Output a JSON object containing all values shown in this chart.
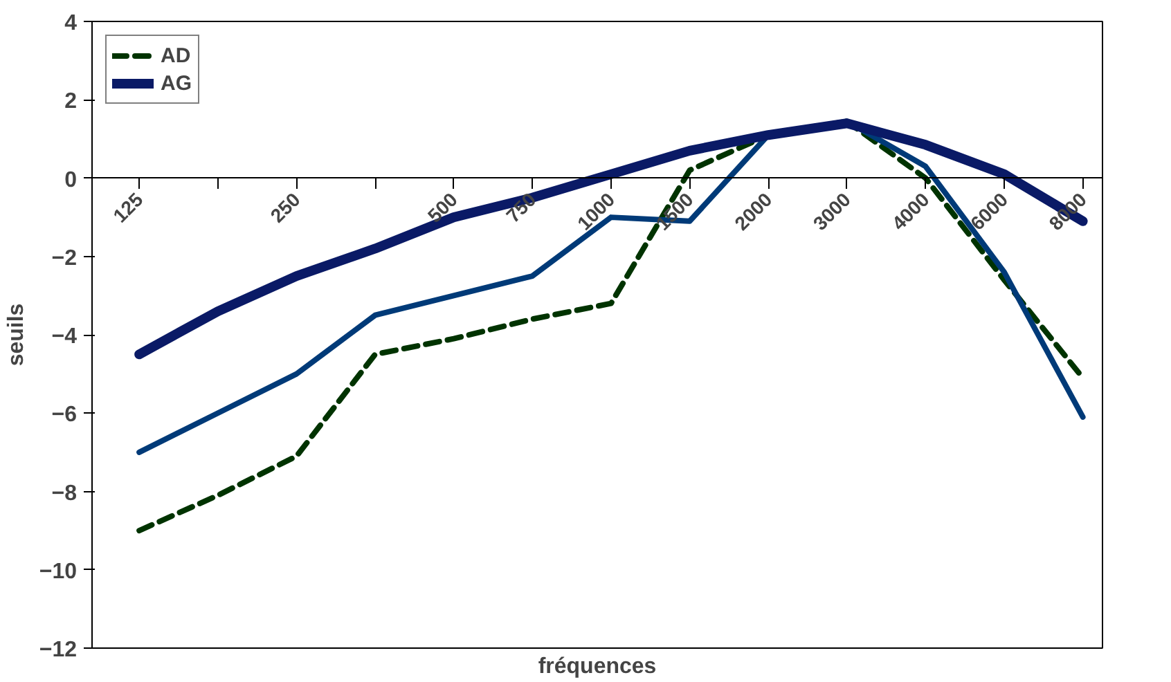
{
  "chart_data": {
    "type": "line",
    "xlabel": "fréquences",
    "ylabel": "seuils",
    "categories": [
      "125",
      null,
      "250",
      null,
      "500",
      "750",
      "1000",
      "1500",
      "2000",
      "3000",
      "4000",
      "6000",
      "8000"
    ],
    "ylim": [
      -12,
      4
    ],
    "yticks": [
      -12,
      -10,
      -8,
      -6,
      -4,
      -2,
      0,
      2,
      4
    ],
    "grid": false,
    "legend": "top left",
    "marker": "none",
    "series": [
      {
        "name": "AD",
        "color": "#003300",
        "line_style": "dashed",
        "values": [
          -9.0,
          -8.1,
          -7.1,
          -4.5,
          -4.1,
          -3.6,
          -3.2,
          0.2,
          1.1,
          1.45,
          0.0,
          -2.6,
          -5.1
        ]
      },
      {
        "color": "#003a78",
        "line_style": "solid",
        "values": [
          -7.0,
          -6.0,
          -5.0,
          -3.5,
          -3.0,
          -2.5,
          -1.0,
          -1.1,
          1.1,
          1.45,
          0.3,
          -2.4,
          -6.1
        ]
      },
      {
        "name": "AG",
        "color": "#0a1a66",
        "line_style": "solid",
        "values": [
          -4.5,
          -3.4,
          -2.5,
          -1.8,
          -1.0,
          -0.5,
          0.1,
          0.7,
          1.1,
          1.4,
          0.85,
          0.1,
          -1.1
        ]
      }
    ]
  }
}
